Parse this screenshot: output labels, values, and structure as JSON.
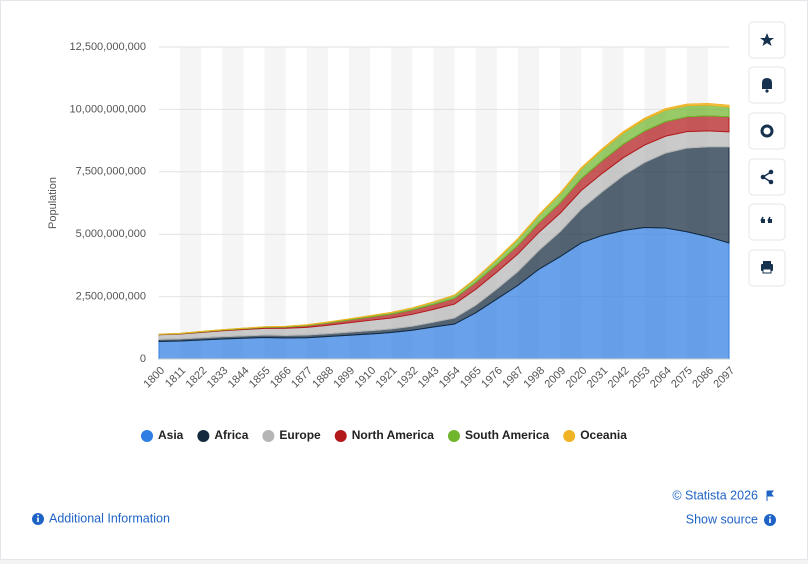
{
  "chart_data": {
    "type": "area",
    "stacked": true,
    "y_label": "Population",
    "categories": [
      "1800",
      "1811",
      "1822",
      "1833",
      "1844",
      "1855",
      "1866",
      "1877",
      "1888",
      "1899",
      "1910",
      "1921",
      "1932",
      "1943",
      "1954",
      "1965",
      "1976",
      "1987",
      "1998",
      "2009",
      "2020",
      "2031",
      "2042",
      "2053",
      "2064",
      "2075",
      "2086",
      "2097"
    ],
    "ylim": [
      0,
      12500000000
    ],
    "yticks": [
      0,
      {
        "value": 2500000000,
        "label": "2,500,000,000"
      },
      {
        "value": 5000000000,
        "label": "5,000,000,000"
      },
      {
        "value": 7500000000,
        "label": "7,500,000,000"
      },
      {
        "value": 10000000000,
        "label": "10,000,000,000"
      },
      {
        "value": 12500000000,
        "label": "12,500,000,000"
      }
    ],
    "grid": true,
    "legend": "bottom",
    "series": [
      {
        "name": "Asia",
        "color": "#2f7ee3",
        "values": [
          700000000,
          720000000,
          760000000,
          800000000,
          830000000,
          860000000,
          840000000,
          850000000,
          900000000,
          950000000,
          1000000000,
          1060000000,
          1150000000,
          1280000000,
          1400000000,
          1850000000,
          2400000000,
          2950000000,
          3600000000,
          4100000000,
          4650000000,
          4950000000,
          5150000000,
          5270000000,
          5250000000,
          5100000000,
          4900000000,
          4650000000
        ]
      },
      {
        "name": "Africa",
        "color": "#14293d",
        "values": [
          80000000,
          80000000,
          85000000,
          90000000,
          90000000,
          95000000,
          100000000,
          105000000,
          110000000,
          120000000,
          130000000,
          140000000,
          160000000,
          190000000,
          240000000,
          300000000,
          400000000,
          550000000,
          750000000,
          1000000000,
          1350000000,
          1750000000,
          2200000000,
          2600000000,
          3000000000,
          3350000000,
          3600000000,
          3850000000
        ]
      },
      {
        "name": "Europe",
        "color": "#b5b5b5",
        "values": [
          190000000,
          200000000,
          220000000,
          240000000,
          260000000,
          270000000,
          290000000,
          310000000,
          340000000,
          380000000,
          420000000,
          440000000,
          480000000,
          520000000,
          560000000,
          640000000,
          680000000,
          710000000,
          730000000,
          740000000,
          750000000,
          740000000,
          720000000,
          700000000,
          680000000,
          660000000,
          640000000,
          600000000
        ]
      },
      {
        "name": "North America",
        "color": "#b3191b",
        "values": [
          10000000,
          15000000,
          20000000,
          25000000,
          30000000,
          40000000,
          50000000,
          70000000,
          90000000,
          110000000,
          130000000,
          160000000,
          180000000,
          200000000,
          230000000,
          270000000,
          300000000,
          340000000,
          380000000,
          420000000,
          470000000,
          510000000,
          540000000,
          560000000,
          580000000,
          590000000,
          600000000,
          600000000
        ]
      },
      {
        "name": "South America",
        "color": "#70b62c",
        "values": [
          10000000,
          12000000,
          15000000,
          17000000,
          20000000,
          22000000,
          25000000,
          30000000,
          35000000,
          40000000,
          50000000,
          60000000,
          70000000,
          90000000,
          120000000,
          160000000,
          200000000,
          250000000,
          300000000,
          350000000,
          400000000,
          430000000,
          450000000,
          460000000,
          460000000,
          450000000,
          430000000,
          400000000
        ]
      },
      {
        "name": "Oceania",
        "color": "#f0b323",
        "values": [
          2000000,
          2000000,
          2000000,
          2000000,
          2000000,
          3000000,
          4000000,
          5000000,
          6000000,
          6000000,
          7000000,
          8000000,
          10000000,
          11000000,
          13000000,
          17000000,
          21000000,
          25000000,
          30000000,
          36000000,
          43000000,
          48000000,
          53000000,
          57000000,
          60000000,
          63000000,
          66000000,
          69000000
        ]
      }
    ]
  },
  "footer": {
    "copyright": "© Statista 2026",
    "show_source": "Show source",
    "additional_information": "Additional Information"
  }
}
